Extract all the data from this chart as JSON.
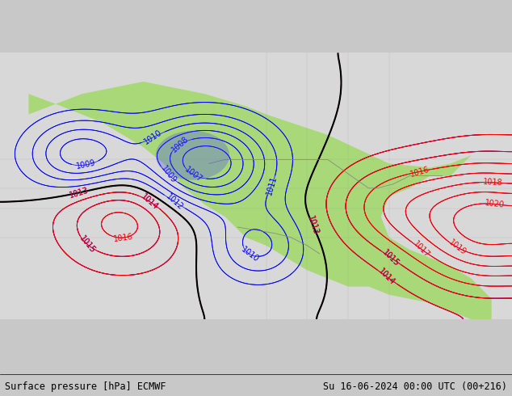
{
  "title_left": "Surface pressure [hPa] ECMWF",
  "title_right": "Su 16-06-2024 00:00 UTC (00+216)",
  "bg_color": "#c8c8c8",
  "land_color": "#a8d878",
  "ocean_color": "#d8d8d8",
  "blue_contour_color": "#0000ff",
  "red_contour_color": "#ff0000",
  "black_contour_color": "#000000",
  "label_fontsize": 7,
  "title_fontsize": 8.5,
  "figsize": [
    6.34,
    4.9
  ],
  "dpi": 100
}
